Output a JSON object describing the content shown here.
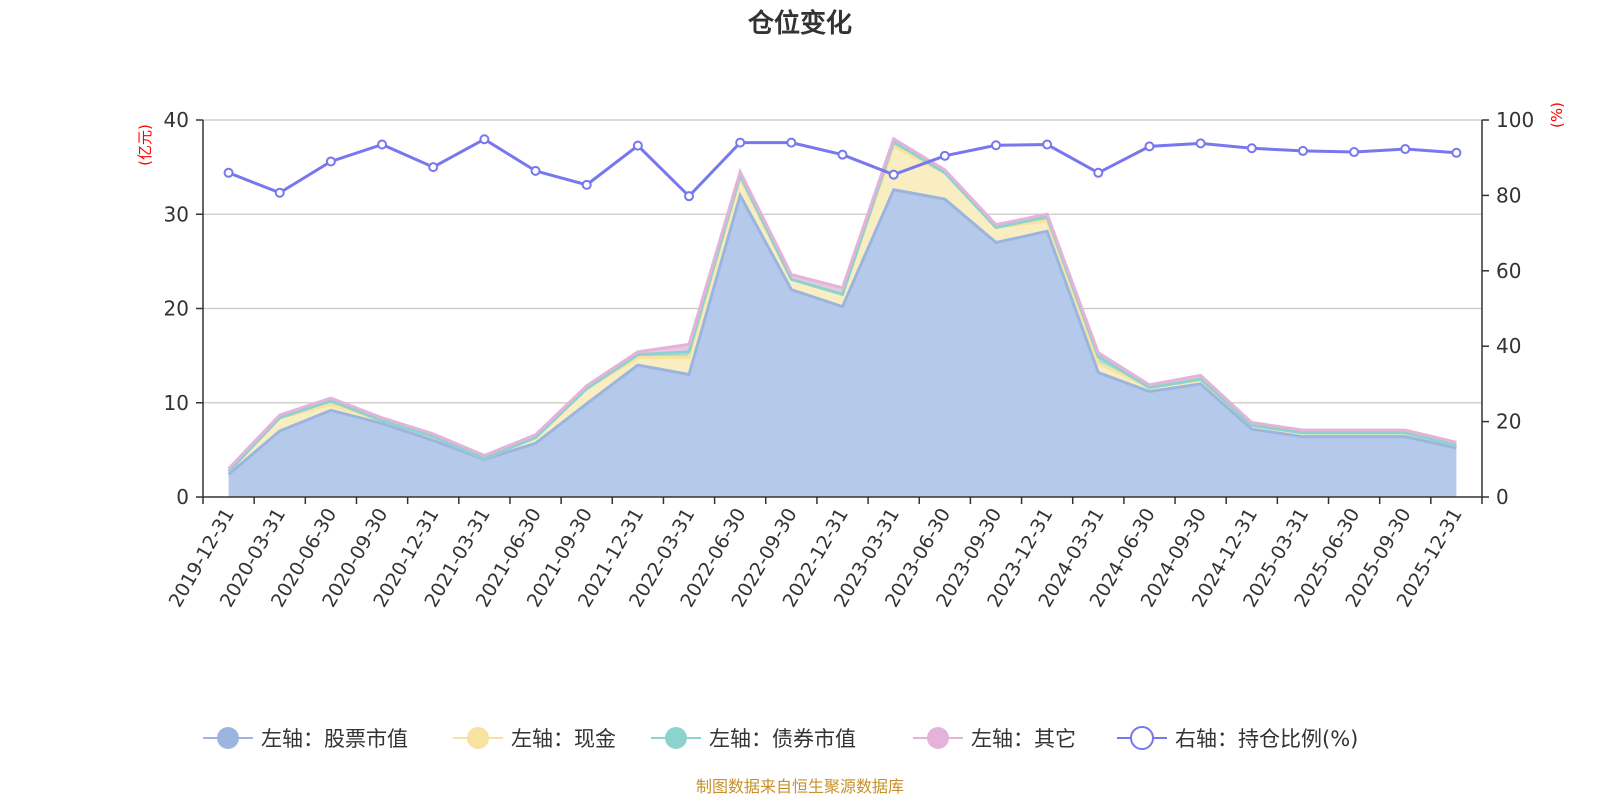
{
  "chart_data": {
    "type": "area",
    "title": "仓位变化",
    "categories": [
      "2019-12-31",
      "2020-03-31",
      "2020-06-30",
      "2020-09-30",
      "2020-12-31",
      "2021-03-31",
      "2021-06-30",
      "2021-09-30",
      "2021-12-31",
      "2022-03-31",
      "2022-06-30",
      "2022-09-30",
      "2022-12-31",
      "2023-03-31",
      "2023-06-30",
      "2023-09-30",
      "2023-12-31",
      "2024-03-31",
      "2024-06-30",
      "2024-09-30",
      "2024-12-31",
      "2025-03-31",
      "2025-06-30",
      "2025-09-30",
      "2025-12-31"
    ],
    "left_axis": {
      "unit": "(亿元)",
      "ylim": [
        0,
        40
      ],
      "ticks": [
        "0",
        "10",
        "20",
        "30",
        "40"
      ]
    },
    "right_axis": {
      "unit": "(%)",
      "ylim": [
        0,
        100
      ],
      "ticks": [
        "0",
        "20",
        "40",
        "60",
        "80",
        "100"
      ]
    },
    "series": [
      {
        "name": "左轴：股票市值",
        "axis": "left",
        "color": "#9bb5e0",
        "fill": "#b5c9ea",
        "values": [
          2.4,
          7.0,
          9.2,
          7.8,
          6.0,
          4.0,
          5.7,
          9.9,
          14.0,
          13.0,
          32.0,
          22.0,
          20.2,
          32.6,
          31.6,
          27.0,
          28.2,
          13.2,
          11.2,
          12.0,
          7.2,
          6.4,
          6.4,
          6.4,
          5.2
        ]
      },
      {
        "name": "左轴：现金",
        "axis": "left",
        "color": "#f7e29f",
        "fill": "#f9eec2",
        "values": [
          0.3,
          1.4,
          0.6,
          0.3,
          0.4,
          0.1,
          0.6,
          1.6,
          0.8,
          1.8,
          1.8,
          1.1,
          1.3,
          4.6,
          2.8,
          1.6,
          1.1,
          1.0,
          0.4,
          0.4,
          0.4,
          0.4,
          0.4,
          0.4,
          0.3
        ]
      },
      {
        "name": "左轴：债券市值",
        "axis": "left",
        "color": "#8cd2cf",
        "fill": "#a9ded9",
        "values": [
          0.0,
          0.0,
          0.4,
          0.0,
          0.0,
          0.0,
          0.0,
          0.0,
          0.3,
          0.6,
          0.3,
          0.0,
          0.0,
          0.5,
          0.0,
          0.0,
          0.4,
          0.7,
          0.0,
          0.1,
          0.0,
          0.0,
          0.0,
          0.0,
          0.0
        ]
      },
      {
        "name": "左轴：其它",
        "axis": "left",
        "color": "#e4b3d9",
        "fill": "#ebc6e3",
        "values": [
          0.3,
          0.3,
          0.3,
          0.3,
          0.3,
          0.3,
          0.3,
          0.3,
          0.3,
          0.8,
          0.4,
          0.5,
          0.7,
          0.3,
          0.3,
          0.3,
          0.3,
          0.4,
          0.3,
          0.4,
          0.3,
          0.3,
          0.3,
          0.3,
          0.3
        ]
      },
      {
        "name": "右轴：持仓比例(%)",
        "axis": "right",
        "color": "#7777ee",
        "values": [
          86.0,
          80.7,
          89.0,
          93.5,
          87.5,
          94.9,
          86.5,
          82.8,
          93.2,
          79.8,
          94.0,
          94.0,
          90.8,
          85.5,
          90.5,
          93.3,
          93.5,
          86.0,
          93.0,
          93.8,
          92.5,
          91.8,
          91.5,
          92.3,
          91.3
        ]
      }
    ],
    "source": "制图数据来自恒生聚源数据库"
  }
}
